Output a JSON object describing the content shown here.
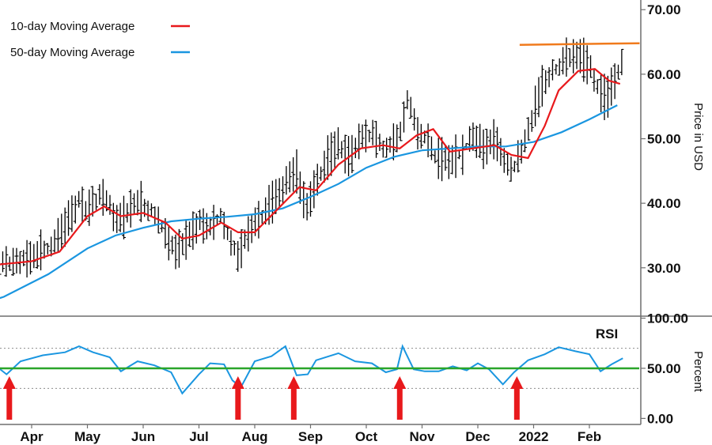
{
  "chart_data": {
    "type": "bar",
    "panels": {
      "price": {
        "ylabel": "Price in USD",
        "y_ticks": [
          "70.00",
          "60.00",
          "50.00",
          "40.00",
          "30.00"
        ],
        "y_tick_values": [
          70,
          60,
          50,
          40,
          30
        ],
        "ylim": [
          22.5,
          71.5
        ],
        "legend": [
          {
            "label": "10-day Moving Average",
            "color": "#e8191c"
          },
          {
            "label": "50-day Moving Average",
            "color": "#1a96e0"
          }
        ],
        "resistance_level": 64.8,
        "resistance_color": "#f07a1c"
      },
      "rsi": {
        "title": "RSI",
        "ylabel": "Percent",
        "y_ticks": [
          "100.00",
          "50.00",
          "0.00"
        ],
        "y_tick_values": [
          100,
          50,
          0
        ],
        "ylim": [
          -6,
          102
        ],
        "midline": 50,
        "midline_color": "#2aa52a",
        "bands": [
          70,
          30
        ],
        "arrow_color": "#e8191c",
        "arrow_positions": [
          {
            "month": "Apr",
            "offset": -0.4
          },
          {
            "month": "Aug",
            "offset": -0.3
          },
          {
            "month": "Sep",
            "offset": -0.3
          },
          {
            "month": "Oct",
            "offset": 0.6
          },
          {
            "month": "Dec",
            "offset": 0.7
          }
        ]
      }
    },
    "x_ticks": [
      "Apr",
      "May",
      "Jun",
      "Jul",
      "Aug",
      "Sep",
      "Oct",
      "Nov",
      "Dec",
      "2022",
      "Feb"
    ],
    "price_path": [
      [
        -1.2,
        31
      ],
      [
        -0.9,
        29
      ],
      [
        -0.7,
        31
      ],
      [
        -0.4,
        30.5
      ],
      [
        0,
        31.5
      ],
      [
        0.3,
        33
      ],
      [
        0.5,
        35
      ],
      [
        0.7,
        38
      ],
      [
        0.85,
        40.5
      ],
      [
        1.0,
        39
      ],
      [
        1.2,
        41
      ],
      [
        1.4,
        40
      ],
      [
        1.5,
        37
      ],
      [
        1.7,
        38.5
      ],
      [
        1.9,
        40
      ],
      [
        2.1,
        39
      ],
      [
        2.3,
        37.5
      ],
      [
        2.45,
        34
      ],
      [
        2.6,
        32.5
      ],
      [
        2.8,
        35
      ],
      [
        3.0,
        37
      ],
      [
        3.2,
        36.5
      ],
      [
        3.4,
        38
      ],
      [
        3.55,
        34
      ],
      [
        3.7,
        31.5
      ],
      [
        3.85,
        35
      ],
      [
        4.0,
        37
      ],
      [
        4.2,
        39
      ],
      [
        4.4,
        41
      ],
      [
        4.6,
        44
      ],
      [
        4.75,
        45
      ],
      [
        4.85,
        41
      ],
      [
        4.95,
        39
      ],
      [
        5.1,
        43
      ],
      [
        5.3,
        47
      ],
      [
        5.5,
        49
      ],
      [
        5.7,
        47
      ],
      [
        5.9,
        50
      ],
      [
        6.1,
        51
      ],
      [
        6.3,
        48.5
      ],
      [
        6.5,
        49.5
      ],
      [
        6.6,
        51
      ],
      [
        6.75,
        56.5
      ],
      [
        6.9,
        51
      ],
      [
        7.1,
        49.5
      ],
      [
        7.25,
        47
      ],
      [
        7.45,
        46.5
      ],
      [
        7.7,
        47.5
      ],
      [
        7.9,
        50.5
      ],
      [
        8.1,
        48.5
      ],
      [
        8.3,
        50
      ],
      [
        8.45,
        47
      ],
      [
        8.6,
        45
      ],
      [
        8.8,
        48.5
      ],
      [
        9.0,
        54
      ],
      [
        9.2,
        59
      ],
      [
        9.4,
        61
      ],
      [
        9.6,
        62.5
      ],
      [
        9.8,
        63
      ],
      [
        10.0,
        61.5
      ],
      [
        10.15,
        58
      ],
      [
        10.3,
        56
      ],
      [
        10.45,
        59
      ],
      [
        10.6,
        62
      ]
    ],
    "ma10_path": [
      [
        -1.2,
        30
      ],
      [
        -0.6,
        30.5
      ],
      [
        0.0,
        31
      ],
      [
        0.5,
        32.5
      ],
      [
        1.0,
        38
      ],
      [
        1.3,
        39.5
      ],
      [
        1.6,
        38
      ],
      [
        2.0,
        38.5
      ],
      [
        2.4,
        37
      ],
      [
        2.7,
        34.5
      ],
      [
        3.0,
        35
      ],
      [
        3.4,
        37
      ],
      [
        3.7,
        35.5
      ],
      [
        4.0,
        35.5
      ],
      [
        4.4,
        39
      ],
      [
        4.8,
        42.5
      ],
      [
        5.1,
        42
      ],
      [
        5.5,
        46
      ],
      [
        5.9,
        48.5
      ],
      [
        6.3,
        49
      ],
      [
        6.6,
        48.5
      ],
      [
        6.9,
        50.5
      ],
      [
        7.2,
        51.5
      ],
      [
        7.5,
        48
      ],
      [
        7.9,
        48.5
      ],
      [
        8.3,
        49
      ],
      [
        8.6,
        47.5
      ],
      [
        8.9,
        47
      ],
      [
        9.2,
        52
      ],
      [
        9.45,
        57.5
      ],
      [
        9.8,
        60.5
      ],
      [
        10.1,
        60.8
      ],
      [
        10.35,
        59
      ],
      [
        10.55,
        58.5
      ]
    ],
    "ma50_path": [
      [
        -1.2,
        23.5
      ],
      [
        -0.5,
        25.5
      ],
      [
        0.3,
        29
      ],
      [
        1.0,
        33
      ],
      [
        1.5,
        35
      ],
      [
        2.0,
        36.2
      ],
      [
        2.5,
        37.2
      ],
      [
        3.0,
        37.6
      ],
      [
        3.5,
        37.9
      ],
      [
        4.0,
        38.3
      ],
      [
        4.5,
        39.2
      ],
      [
        5.0,
        41
      ],
      [
        5.5,
        43
      ],
      [
        6.0,
        45.5
      ],
      [
        6.5,
        47.2
      ],
      [
        7.0,
        48.2
      ],
      [
        7.5,
        48.5
      ],
      [
        8.0,
        48.8
      ],
      [
        8.5,
        48.8
      ],
      [
        9.0,
        49.5
      ],
      [
        9.5,
        51
      ],
      [
        10.0,
        53
      ],
      [
        10.5,
        55.2
      ]
    ],
    "rsi_path": [
      [
        -1.2,
        53
      ],
      [
        -0.9,
        57
      ],
      [
        -0.7,
        55
      ],
      [
        -0.45,
        44
      ],
      [
        -0.2,
        57
      ],
      [
        0.2,
        63
      ],
      [
        0.6,
        66
      ],
      [
        0.85,
        72
      ],
      [
        1.1,
        66
      ],
      [
        1.4,
        61
      ],
      [
        1.6,
        47
      ],
      [
        1.9,
        57
      ],
      [
        2.2,
        53
      ],
      [
        2.5,
        46
      ],
      [
        2.7,
        25
      ],
      [
        3.0,
        44
      ],
      [
        3.2,
        55
      ],
      [
        3.45,
        54
      ],
      [
        3.6,
        38
      ],
      [
        3.75,
        31
      ],
      [
        4.0,
        57
      ],
      [
        4.3,
        62
      ],
      [
        4.55,
        72
      ],
      [
        4.75,
        43
      ],
      [
        4.95,
        44
      ],
      [
        5.1,
        58
      ],
      [
        5.5,
        65
      ],
      [
        5.8,
        57
      ],
      [
        6.1,
        55
      ],
      [
        6.35,
        46
      ],
      [
        6.55,
        49
      ],
      [
        6.65,
        72
      ],
      [
        6.85,
        49
      ],
      [
        7.05,
        47
      ],
      [
        7.3,
        47
      ],
      [
        7.55,
        52
      ],
      [
        7.8,
        48
      ],
      [
        8.0,
        55
      ],
      [
        8.2,
        49
      ],
      [
        8.45,
        34
      ],
      [
        8.65,
        46
      ],
      [
        8.9,
        58
      ],
      [
        9.2,
        64
      ],
      [
        9.45,
        71
      ],
      [
        9.75,
        67
      ],
      [
        10.0,
        64
      ],
      [
        10.2,
        47
      ],
      [
        10.4,
        54
      ],
      [
        10.6,
        60
      ]
    ]
  }
}
